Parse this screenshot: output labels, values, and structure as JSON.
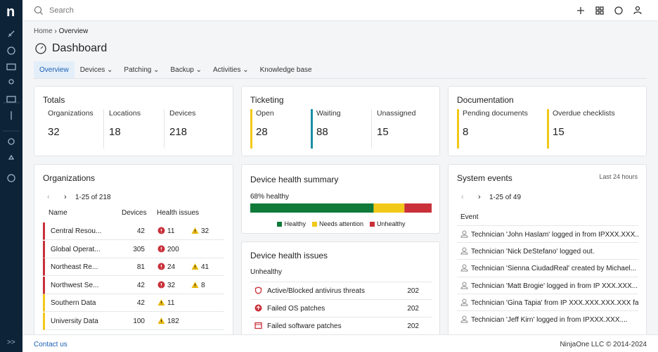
{
  "sidebar": {
    "logo": "n",
    "collapse": ">>"
  },
  "search": "Search",
  "breadcrumb": [
    "Home",
    "Overview"
  ],
  "page_title": "Dashboard",
  "tabs": [
    "Overview",
    "Devices",
    "Patching",
    "Backup",
    "Activities",
    "Knowledge base"
  ],
  "totals": {
    "title": "Totals",
    "stats": [
      {
        "label": "Organizations",
        "value": 32
      },
      {
        "label": "Locations",
        "value": 18
      },
      {
        "label": "Devices",
        "value": 218
      }
    ]
  },
  "ticketing": {
    "title": "Ticketing",
    "stats": [
      {
        "label": "Open",
        "value": 28,
        "color": "#f2c919"
      },
      {
        "label": "Waiting",
        "value": 88,
        "color": "#1a8fa6"
      },
      {
        "label": "Unassigned",
        "value": 15
      }
    ]
  },
  "documentation": {
    "title": "Documentation",
    "stats": [
      {
        "label": "Pending documents",
        "value": 8,
        "color": "#f2c919"
      },
      {
        "label": "Overdue checklists",
        "value": 15,
        "color": "#f2c919"
      }
    ]
  },
  "organizations": {
    "title": "Organizations",
    "pagination": "1-25 of 218",
    "columns": [
      "Name",
      "Devices",
      "Health issues"
    ],
    "rows": [
      {
        "name": "Central Resou...",
        "devices": 42,
        "unhealthy": 11,
        "warnings": 32,
        "color": "#c9303a"
      },
      {
        "name": "Global Operat...",
        "devices": 305,
        "unhealthy": 200,
        "color": "#c9303a"
      },
      {
        "name": "Northeast Re...",
        "devices": 81,
        "unhealthy": 24,
        "warnings": 41,
        "color": "#c9303a"
      },
      {
        "name": "Northwest Se...",
        "devices": 42,
        "unhealthy": 32,
        "warnings": 8,
        "color": "#c9303a"
      },
      {
        "name": "Southern Data",
        "devices": 42,
        "warnings": 11,
        "color": "#f2c919"
      },
      {
        "name": "University Data",
        "devices": 100,
        "warnings": 182,
        "color": "#f2c919"
      }
    ]
  },
  "health_summary": {
    "title": "Device health summary",
    "label": "68% healthy",
    "segments": [
      {
        "name": "Healthy",
        "color": "#0f7a3a",
        "value": 68
      },
      {
        "name": "Needs attention",
        "color": "#f2c919",
        "value": 17
      },
      {
        "name": "Unhealthy",
        "color": "#c9303a",
        "value": 15
      }
    ]
  },
  "health_issues": {
    "title": "Device health issues",
    "subtitle": "Unhealthy",
    "rows": [
      {
        "label": "Active/Blocked antivirus threats",
        "count": 202
      },
      {
        "label": "Failed OS patches",
        "count": 202
      },
      {
        "label": "Failed software patches",
        "count": 202
      }
    ]
  },
  "system_events": {
    "title": "System events",
    "range": "Last 24 hours",
    "pagination": "1-25 of 49",
    "column": "Event",
    "events": [
      "Technician 'John Haslam' logged in from IPXXX.XXX....",
      "Technician 'Nick DeStefano' logged out.",
      "Technician 'Sienna CiudadReal' created by Michael...",
      "Technician 'Matt Brogie' logged in from IP XXX.XXX....",
      "Technician 'Gina Tapia' from IP XXX.XXX.XXX.XXX failed",
      "Technician 'Jeff Kirn' logged in from IPXXX.XXX...."
    ]
  },
  "footer": {
    "contact": "Contact us",
    "copyright": "NinjaOne LLC © 2014-2024"
  }
}
